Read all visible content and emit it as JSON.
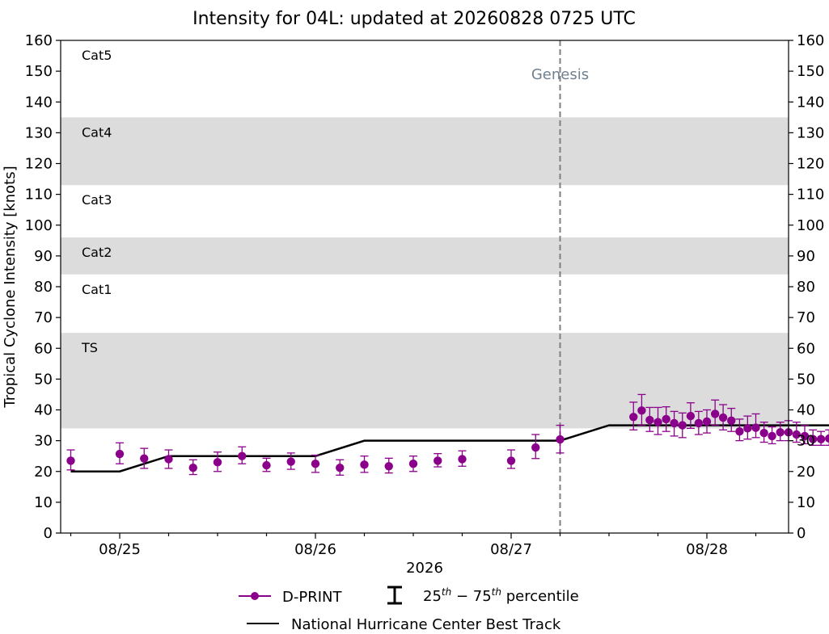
{
  "chart_data": {
    "type": "scatter",
    "title": "Intensity for 04L: updated at 20260828 0725 UTC",
    "xlabel": "2026",
    "ylabel": "Tropical Cyclone Intensity [knots]",
    "ylim": [
      0,
      160
    ],
    "xlim_days": [
      -0.25,
      3.45
    ],
    "y_ticks": [
      "0",
      "10",
      "20",
      "30",
      "40",
      "50",
      "60",
      "70",
      "80",
      "90",
      "100",
      "110",
      "120",
      "130",
      "140",
      "150",
      "160"
    ],
    "x_ticks": [
      {
        "day": 0,
        "label": "08/25"
      },
      {
        "day": 1,
        "label": "08/26"
      },
      {
        "day": 2,
        "label": "08/27"
      },
      {
        "day": 3,
        "label": "08/28"
      }
    ],
    "category_bands": [
      {
        "name": "TS",
        "from": 34,
        "to": 65,
        "shaded": true
      },
      {
        "name": "Cat1",
        "from": 65,
        "to": 84,
        "shaded": false
      },
      {
        "name": "Cat2",
        "from": 84,
        "to": 96,
        "shaded": true
      },
      {
        "name": "Cat3",
        "from": 96,
        "to": 113,
        "shaded": false
      },
      {
        "name": "Cat4",
        "from": 113,
        "to": 135,
        "shaded": true
      },
      {
        "name": "Cat5",
        "from": 135,
        "to": 160,
        "shaded": false
      }
    ],
    "genesis": {
      "day": 2.25,
      "label": "Genesis"
    },
    "series": [
      {
        "name": "D-PRINT",
        "color": "#8B008B",
        "points": [
          {
            "day": -0.25,
            "y": 23.5,
            "lo": 20.5,
            "hi": 27.0
          },
          {
            "day": 0.0,
            "y": 25.7,
            "lo": 22.5,
            "hi": 29.3
          },
          {
            "day": 0.125,
            "y": 24.2,
            "lo": 21.0,
            "hi": 27.5
          },
          {
            "day": 0.25,
            "y": 24.0,
            "lo": 21.0,
            "hi": 27.0
          },
          {
            "day": 0.375,
            "y": 21.2,
            "lo": 19.0,
            "hi": 23.8
          },
          {
            "day": 0.5,
            "y": 23.0,
            "lo": 20.0,
            "hi": 26.3
          },
          {
            "day": 0.625,
            "y": 25.0,
            "lo": 22.5,
            "hi": 28.0
          },
          {
            "day": 0.75,
            "y": 22.0,
            "lo": 20.0,
            "hi": 24.3
          },
          {
            "day": 0.875,
            "y": 23.2,
            "lo": 20.7,
            "hi": 26.0
          },
          {
            "day": 1.0,
            "y": 22.5,
            "lo": 19.7,
            "hi": 25.3
          },
          {
            "day": 1.125,
            "y": 21.2,
            "lo": 18.8,
            "hi": 23.8
          },
          {
            "day": 1.25,
            "y": 22.2,
            "lo": 19.7,
            "hi": 25.0
          },
          {
            "day": 1.375,
            "y": 21.7,
            "lo": 19.5,
            "hi": 24.3
          },
          {
            "day": 1.5,
            "y": 22.5,
            "lo": 20.0,
            "hi": 25.0
          },
          {
            "day": 1.625,
            "y": 23.5,
            "lo": 21.5,
            "hi": 25.8
          },
          {
            "day": 1.75,
            "y": 24.0,
            "lo": 21.7,
            "hi": 26.7
          },
          {
            "day": 2.0,
            "y": 23.5,
            "lo": 21.0,
            "hi": 27.0
          },
          {
            "day": 2.125,
            "y": 27.8,
            "lo": 24.2,
            "hi": 32.0
          },
          {
            "day": 2.25,
            "y": 30.4,
            "lo": 26.0,
            "hi": 35.0
          },
          {
            "day": 2.625,
            "y": 37.7,
            "lo": 33.5,
            "hi": 42.5
          },
          {
            "day": 2.667,
            "y": 39.8,
            "lo": 35.0,
            "hi": 45.0
          },
          {
            "day": 2.708,
            "y": 36.7,
            "lo": 33.0,
            "hi": 40.8
          },
          {
            "day": 2.75,
            "y": 36.0,
            "lo": 32.0,
            "hi": 40.8
          },
          {
            "day": 2.792,
            "y": 37.0,
            "lo": 33.0,
            "hi": 41.0
          },
          {
            "day": 2.833,
            "y": 35.7,
            "lo": 31.5,
            "hi": 39.5
          },
          {
            "day": 2.875,
            "y": 35.0,
            "lo": 31.0,
            "hi": 39.0
          },
          {
            "day": 2.917,
            "y": 38.0,
            "lo": 34.0,
            "hi": 42.3
          },
          {
            "day": 2.958,
            "y": 35.7,
            "lo": 32.0,
            "hi": 39.5
          },
          {
            "day": 3.0,
            "y": 36.2,
            "lo": 32.5,
            "hi": 40.0
          },
          {
            "day": 3.042,
            "y": 38.7,
            "lo": 35.0,
            "hi": 43.2
          },
          {
            "day": 3.083,
            "y": 37.5,
            "lo": 33.5,
            "hi": 41.7
          },
          {
            "day": 3.125,
            "y": 36.5,
            "lo": 33.0,
            "hi": 40.5
          },
          {
            "day": 3.167,
            "y": 33.0,
            "lo": 30.0,
            "hi": 37.0
          },
          {
            "day": 3.208,
            "y": 34.0,
            "lo": 30.5,
            "hi": 38.0
          },
          {
            "day": 3.25,
            "y": 34.2,
            "lo": 31.0,
            "hi": 38.7
          },
          {
            "day": 3.292,
            "y": 32.5,
            "lo": 29.5,
            "hi": 36.0
          },
          {
            "day": 3.333,
            "y": 31.5,
            "lo": 29.0,
            "hi": 34.5
          },
          {
            "day": 3.375,
            "y": 32.7,
            "lo": 30.0,
            "hi": 36.0
          },
          {
            "day": 3.417,
            "y": 32.7,
            "lo": 30.0,
            "hi": 36.5
          },
          {
            "day": 3.458,
            "y": 32.0,
            "lo": 29.5,
            "hi": 36.0
          },
          {
            "day": 3.5,
            "y": 31.5,
            "lo": 29.0,
            "hi": 35.0
          },
          {
            "day": 3.542,
            "y": 30.5,
            "lo": 28.5,
            "hi": 33.5
          },
          {
            "day": 3.583,
            "y": 30.5,
            "lo": 28.5,
            "hi": 33.0
          },
          {
            "day": 3.625,
            "y": 30.7,
            "lo": 28.5,
            "hi": 33.5
          },
          {
            "day": 3.667,
            "y": 31.7,
            "lo": 29.5,
            "hi": 34.5
          },
          {
            "day": 3.708,
            "y": 31.0,
            "lo": 29.0,
            "hi": 33.5
          },
          {
            "day": 3.75,
            "y": 32.5,
            "lo": 30.0,
            "hi": 35.5
          },
          {
            "day": 3.792,
            "y": 32.5,
            "lo": 29.5,
            "hi": 36.0
          }
        ]
      },
      {
        "name": "National Hurricane Center Best Track",
        "color": "#000000",
        "points": [
          {
            "day": -0.25,
            "y": 20
          },
          {
            "day": 0.0,
            "y": 20
          },
          {
            "day": 0.25,
            "y": 25
          },
          {
            "day": 0.5,
            "y": 25
          },
          {
            "day": 0.75,
            "y": 25
          },
          {
            "day": 1.0,
            "y": 25
          },
          {
            "day": 1.25,
            "y": 30
          },
          {
            "day": 1.5,
            "y": 30
          },
          {
            "day": 1.75,
            "y": 30
          },
          {
            "day": 2.0,
            "y": 30
          },
          {
            "day": 2.25,
            "y": 30
          },
          {
            "day": 2.5,
            "y": 35
          },
          {
            "day": 2.75,
            "y": 35
          },
          {
            "day": 3.0,
            "y": 35
          },
          {
            "day": 3.25,
            "y": 35
          },
          {
            "day": 3.5,
            "y": 35
          },
          {
            "day": 3.75,
            "y": 35
          },
          {
            "day": 3.833,
            "y": 35
          }
        ]
      }
    ],
    "legend": {
      "dprint": "D-PRINT",
      "percentile_base1": "25",
      "percentile_sup1": "th",
      "percentile_dash": " − ",
      "percentile_base2": "75",
      "percentile_sup2": "th",
      "percentile_rest": " percentile",
      "best_track": "National Hurricane Center Best Track"
    }
  }
}
